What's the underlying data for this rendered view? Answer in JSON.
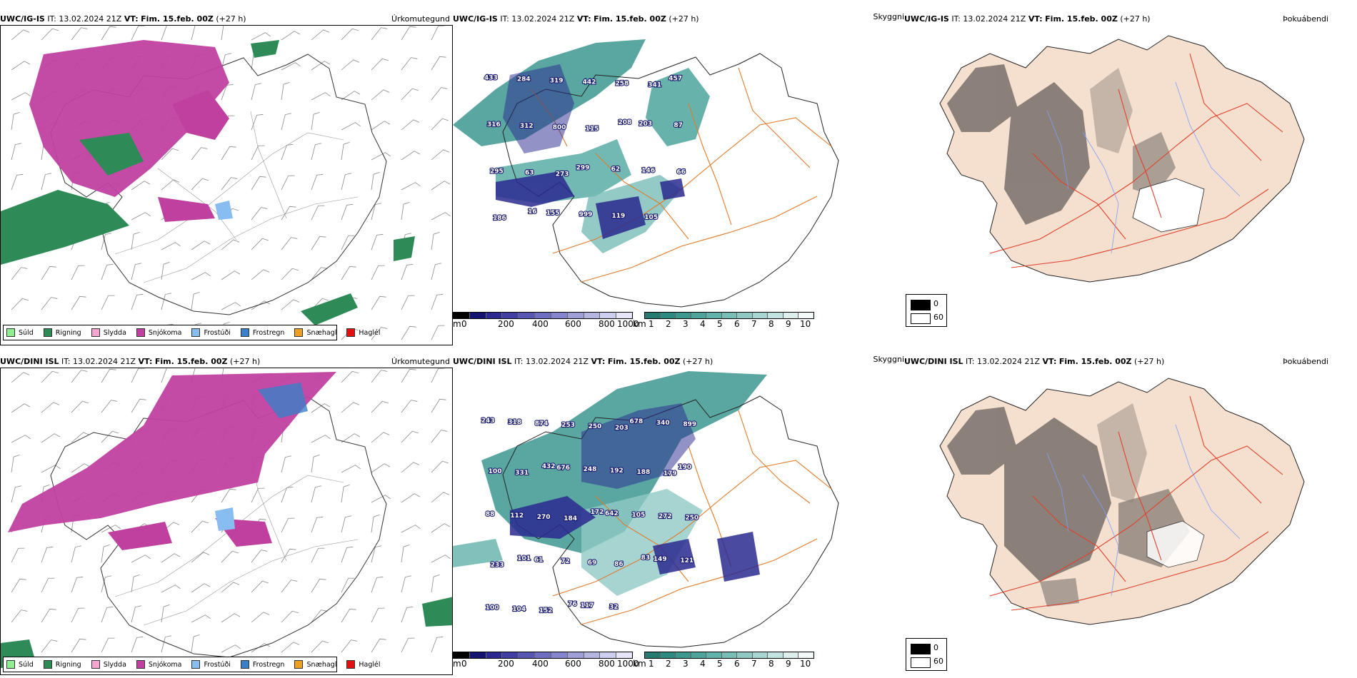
{
  "rows": [
    {
      "precip": {
        "model": "UWC/IG-IS",
        "it_label": "IT:",
        "it_value": "13.02.2024 21Z",
        "vt_label": "VT:",
        "vt_value": "Fim. 15.feb. 00Z",
        "lead": "(+27 h)",
        "title": "Úrkomutegund"
      },
      "cloud": {
        "model": "UWC/IG-IS",
        "it_label": "IT:",
        "it_value": "13.02.2024 21Z",
        "vt_label": "VT:",
        "vt_value": "Fim. 15.feb. 00Z",
        "lead": "(+27 h)",
        "title": "Skyggni"
      },
      "fog": {
        "model": "UWC/IG-IS",
        "it_label": "IT:",
        "it_value": "13.02.2024 21Z",
        "vt_label": "VT:",
        "vt_value": "Fim. 15.feb. 00Z",
        "lead": "(+27 h)",
        "title": "Þokuábendi"
      },
      "labels": [
        "433",
        "284",
        "319",
        "442",
        "258",
        "341",
        "457",
        "316",
        "312",
        "800",
        "115",
        "208",
        "203",
        "87",
        "295",
        "63",
        "273",
        "299",
        "62",
        "146",
        "66",
        "186",
        "16",
        "155",
        "999",
        "119",
        "105"
      ]
    },
    {
      "precip": {
        "model": "UWC/DINI ISL",
        "it_label": "IT:",
        "it_value": "13.02.2024 21Z",
        "vt_label": "VT:",
        "vt_value": "Fim. 15.feb. 00Z",
        "lead": "(+27 h)",
        "title": "Úrkomutegund"
      },
      "cloud": {
        "model": "UWC/DINI ISL",
        "it_label": "IT:",
        "it_value": "13.02.2024 21Z",
        "vt_label": "VT:",
        "vt_value": "Fim. 15.feb. 00Z",
        "lead": "(+27 h)",
        "title": "Skyggni"
      },
      "fog": {
        "model": "UWC/DINI ISL",
        "it_label": "IT:",
        "it_value": "13.02.2024 21Z",
        "vt_label": "VT:",
        "vt_value": "Fim. 15.feb. 00Z",
        "lead": "(+27 h)",
        "title": "Þokuábendi"
      },
      "labels": [
        "243",
        "318",
        "874",
        "253",
        "250",
        "203",
        "678",
        "340",
        "899",
        "100",
        "331",
        "432",
        "676",
        "248",
        "192",
        "188",
        "179",
        "190",
        "88",
        "112",
        "270",
        "184",
        "172",
        "642",
        "105",
        "272",
        "250",
        "233",
        "101",
        "61",
        "72",
        "69",
        "86",
        "83",
        "149",
        "121",
        "100",
        "104",
        "152",
        "76",
        "117",
        "32"
      ]
    }
  ],
  "precip_legend": [
    {
      "label": "Súld",
      "color": "#90ee90"
    },
    {
      "label": "Rigning",
      "color": "#2e8b57"
    },
    {
      "label": "Slydda",
      "color": "#f4a6d0"
    },
    {
      "label": "Snjókoma",
      "color": "#c040a0"
    },
    {
      "label": "Frostúði",
      "color": "#87bdf0"
    },
    {
      "label": "Frostregn",
      "color": "#3a80c8"
    },
    {
      "label": "Snæhagl",
      "color": "#f0a020"
    },
    {
      "label": "Haglél",
      "color": "#e01010"
    }
  ],
  "cloud_base_bar": {
    "unit": "m",
    "ticks": [
      "0",
      "200",
      "400",
      "600",
      "800",
      "1000"
    ],
    "colors": [
      "#000000",
      "#141470",
      "#2a2a90",
      "#3f3fa4",
      "#5656b4",
      "#6e6ec2",
      "#8686ce",
      "#9e9ed8",
      "#b6b6e2",
      "#cecef0",
      "#e6e6f8"
    ]
  },
  "visibility_bar": {
    "unit": "km",
    "ticks": [
      "1",
      "2",
      "3",
      "4",
      "5",
      "6",
      "7",
      "8",
      "9",
      "10"
    ],
    "colors": [
      "#267a70",
      "#2f8a80",
      "#3d9890",
      "#4ea59d",
      "#62b1aa",
      "#78bdb7",
      "#90c9c4",
      "#a8d6d2",
      "#c2e3e0",
      "#dcefed",
      "#f2f9f8"
    ]
  },
  "fog_legend": {
    "dark_value": "0",
    "light_value": "60"
  }
}
